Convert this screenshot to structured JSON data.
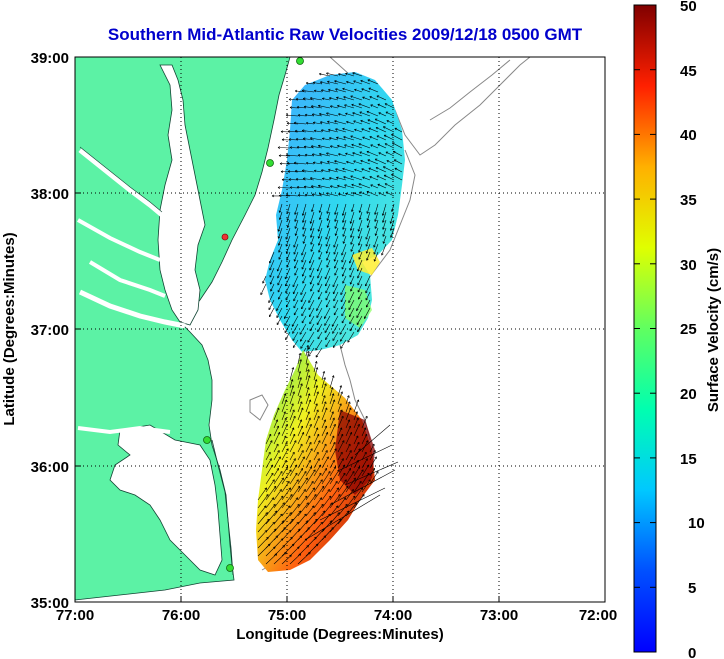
{
  "title": "Southern Mid-Atlantic Raw Velocities 2009/12/18 0500 GMT",
  "x_axis": {
    "label": "Longitude (Degrees:Minutes)",
    "tick_labels": [
      "77:00",
      "76:00",
      "75:00",
      "74:00",
      "73:00",
      "72:00"
    ],
    "range": [
      -77,
      -72
    ]
  },
  "y_axis": {
    "label": "Latitude (Degrees:Minutes)",
    "tick_labels": [
      "39:00",
      "38:00",
      "37:00",
      "36:00",
      "35:00"
    ],
    "range": [
      35,
      39
    ]
  },
  "colorbar": {
    "label": "Surface Velocity (cm/s)",
    "tick_labels": [
      "50",
      "45",
      "40",
      "35",
      "30",
      "25",
      "20",
      "15",
      "10",
      "5",
      "0"
    ],
    "range": [
      0,
      50
    ],
    "colormap": "jet"
  },
  "grid": "dotted",
  "colors": {
    "land": "#5cf2a5",
    "water": "#ffffff",
    "title": "#0000cc",
    "station_green": "#33dd33",
    "station_red": "#ee3333"
  }
}
